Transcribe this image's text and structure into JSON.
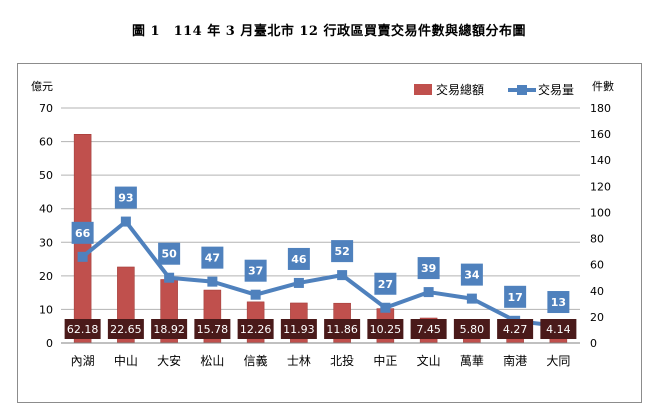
{
  "figure": {
    "title": "圖 1　114 年 3 月臺北市 12 行政區買賣交易件數與總額分布圖"
  },
  "colors": {
    "bar": "#c0504d",
    "bar_edge": "#9b3431",
    "line": "#4f81bd",
    "marker": "#4f81bd",
    "count_label_bg": "#4f81bd",
    "value_label_bg": "#4a1a1a",
    "gridline": "#b3b3b3"
  },
  "chart_data": {
    "type": "bar",
    "title": "",
    "categories": [
      "內湖",
      "中山",
      "大安",
      "松山",
      "信義",
      "士林",
      "北投",
      "中正",
      "文山",
      "萬華",
      "南港",
      "大同"
    ],
    "series": [
      {
        "name": "交易總額",
        "type": "bar",
        "axis": "left",
        "values": [
          62.18,
          22.65,
          18.92,
          15.78,
          12.26,
          11.93,
          11.86,
          10.25,
          7.45,
          5.8,
          4.27,
          4.14
        ],
        "labels": [
          "62.18",
          "22.65",
          "18.92",
          "15.78",
          "12.26",
          "11.93",
          "11.86",
          "10.25",
          "7.45",
          "5.80",
          "4.27",
          "4.14"
        ]
      },
      {
        "name": "交易量",
        "type": "line",
        "axis": "right",
        "values": [
          66,
          93,
          50,
          47,
          37,
          46,
          52,
          27,
          39,
          34,
          17,
          13
        ],
        "labels": [
          "66",
          "93",
          "50",
          "47",
          "37",
          "46",
          "52",
          "27",
          "39",
          "34",
          "17",
          "13"
        ]
      }
    ],
    "ylabel": "億元",
    "y2label": "件數",
    "ylim": [
      0,
      70
    ],
    "y2lim": [
      0,
      180
    ],
    "yticks": [
      "0",
      "10",
      "20",
      "30",
      "40",
      "50",
      "60",
      "70"
    ],
    "y2ticks": [
      "0",
      "20",
      "40",
      "60",
      "80",
      "100",
      "120",
      "140",
      "160",
      "180"
    ],
    "grid": true,
    "legend_position": "top-right"
  }
}
